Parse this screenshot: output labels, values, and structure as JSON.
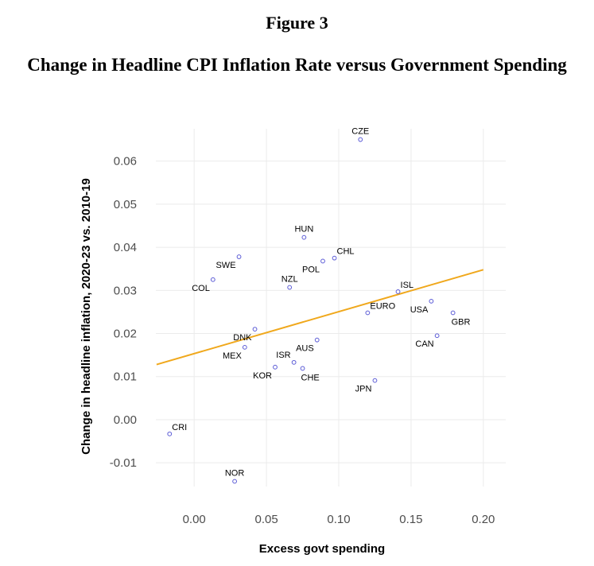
{
  "figure": {
    "number": "Figure 3",
    "title": "Change in Headline CPI Inflation Rate versus Government Spending"
  },
  "colors": {
    "points": "#5b5bd6",
    "trend_line": "#f0a81c",
    "grid": "#ebebeb",
    "tick_text": "#4d4d4d"
  },
  "chart_data": {
    "type": "scatter",
    "xlabel": "Excess govt spending",
    "ylabel": "Change in headline inflation, 2020-23 vs. 2010-19",
    "xlim": [
      -0.0265,
      0.2155
    ],
    "ylim": [
      -0.0155,
      0.0675
    ],
    "x_ticks": [
      0.0,
      0.05,
      0.1,
      0.15,
      0.2
    ],
    "x_tick_labels": [
      "0.00",
      "0.05",
      "0.10",
      "0.15",
      "0.20"
    ],
    "y_ticks": [
      -0.01,
      0.0,
      0.01,
      0.02,
      0.03,
      0.04,
      0.05,
      0.06
    ],
    "y_tick_labels": [
      "-0.01",
      "0.00",
      "0.01",
      "0.02",
      "0.03",
      "0.04",
      "0.05",
      "0.06"
    ],
    "grid": true,
    "legend": "none",
    "points": [
      {
        "label": "CZE",
        "x": 0.115,
        "y": 0.065,
        "label_pos": "above"
      },
      {
        "label": "HUN",
        "x": 0.076,
        "y": 0.0423,
        "label_pos": "above"
      },
      {
        "label": "SWE",
        "x": 0.031,
        "y": 0.0378,
        "label_pos": "below-left"
      },
      {
        "label": "CHL",
        "x": 0.097,
        "y": 0.0375,
        "label_pos": "above-right"
      },
      {
        "label": "POL",
        "x": 0.089,
        "y": 0.0368,
        "label_pos": "below-left"
      },
      {
        "label": "COL",
        "x": 0.013,
        "y": 0.0325,
        "label_pos": "below-left"
      },
      {
        "label": "NZL",
        "x": 0.066,
        "y": 0.0307,
        "label_pos": "above"
      },
      {
        "label": "ISL",
        "x": 0.141,
        "y": 0.0297,
        "label_pos": "above-right"
      },
      {
        "label": "USA",
        "x": 0.164,
        "y": 0.0275,
        "label_pos": "below-left"
      },
      {
        "label": "EURO",
        "x": 0.12,
        "y": 0.0248,
        "label_pos": "above-right"
      },
      {
        "label": "GBR",
        "x": 0.179,
        "y": 0.0248,
        "label_pos": "below-right"
      },
      {
        "label": "DNK",
        "x": 0.042,
        "y": 0.021,
        "label_pos": "below-left"
      },
      {
        "label": "CAN",
        "x": 0.168,
        "y": 0.0195,
        "label_pos": "below-left"
      },
      {
        "label": "AUS",
        "x": 0.085,
        "y": 0.0185,
        "label_pos": "below-left"
      },
      {
        "label": "MEX",
        "x": 0.035,
        "y": 0.0168,
        "label_pos": "below-left"
      },
      {
        "label": "ISR",
        "x": 0.069,
        "y": 0.0133,
        "label_pos": "above-left"
      },
      {
        "label": "KOR",
        "x": 0.056,
        "y": 0.0122,
        "label_pos": "below-left"
      },
      {
        "label": "CHE",
        "x": 0.075,
        "y": 0.0119,
        "label_pos": "below-right"
      },
      {
        "label": "JPN",
        "x": 0.125,
        "y": 0.0091,
        "label_pos": "below-left"
      },
      {
        "label": "CRI",
        "x": -0.017,
        "y": -0.0033,
        "label_pos": "above-right"
      },
      {
        "label": "NOR",
        "x": 0.028,
        "y": -0.0143,
        "label_pos": "above"
      }
    ],
    "trend_line": {
      "x": [
        -0.026,
        0.2
      ],
      "y": [
        0.0128,
        0.0348
      ]
    }
  }
}
